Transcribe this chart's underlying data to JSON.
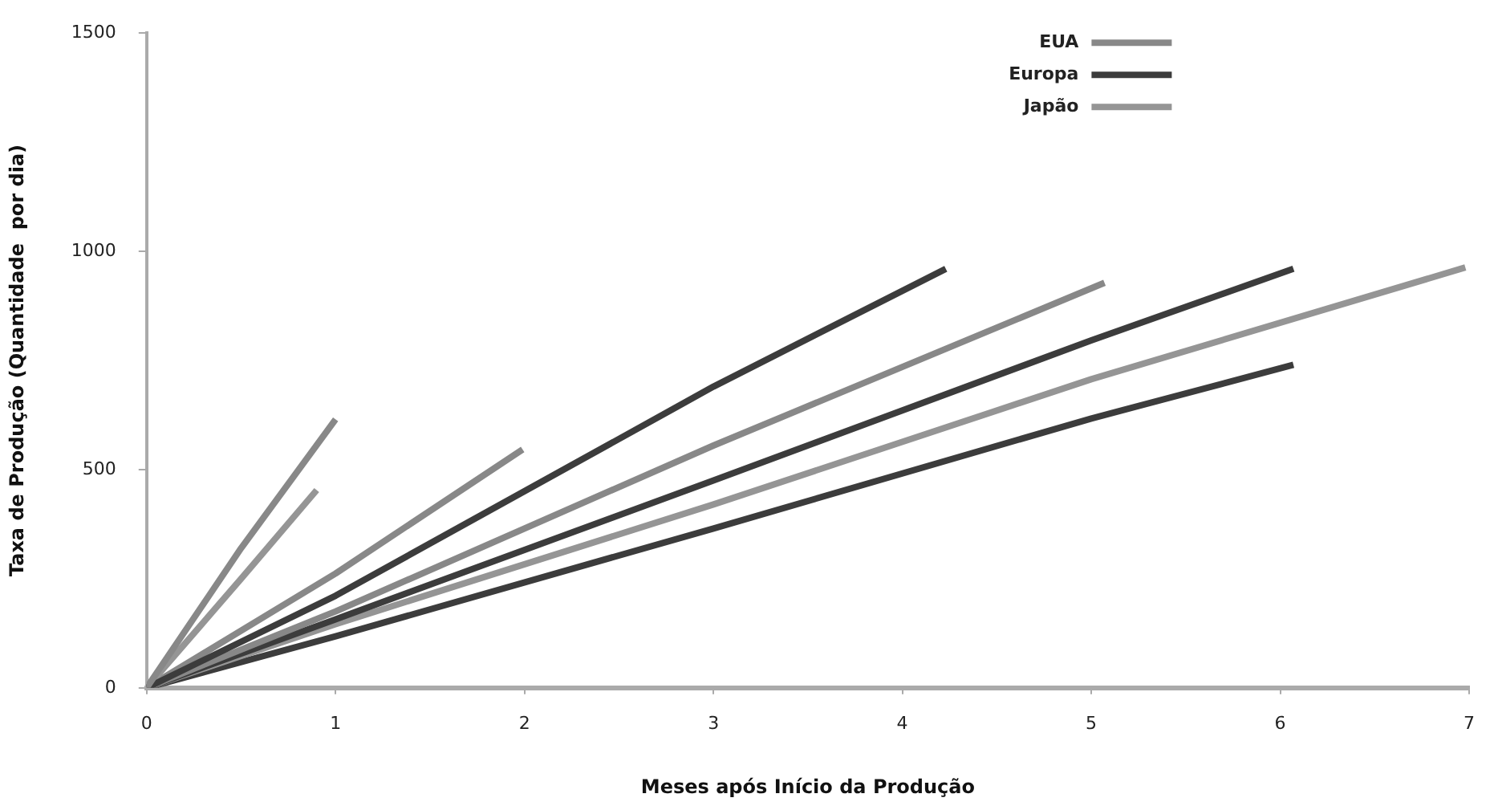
{
  "chart_data": {
    "type": "line",
    "xlabel": "Meses após Início da Produção",
    "ylabel": "Taxa de Produção (Quantidade  por dia)",
    "xlim": [
      0,
      7
    ],
    "xticks": [
      0,
      1,
      2,
      3,
      4,
      5,
      6,
      7
    ],
    "ylim": [
      0,
      1500
    ],
    "yticks": [
      0,
      500,
      1000,
      1500
    ],
    "grid": false,
    "legend": "top right",
    "marker": "none",
    "line_style": "solid",
    "series": [
      {
        "name": "EUA",
        "color": "#888888",
        "x": [
          0,
          0.5,
          1.0
        ],
        "values": [
          0,
          320,
          615
        ]
      },
      {
        "name": "Europa",
        "color": "#3c3c3c",
        "x": [
          0,
          1,
          3,
          4.23
        ],
        "values": [
          0,
          211,
          690,
          960
        ]
      },
      {
        "name": "Japão",
        "color": "#959595",
        "x": [
          0,
          0.5,
          0.9
        ],
        "values": [
          0,
          250,
          453
        ]
      },
      {
        "color": "#888888",
        "x": [
          0,
          1,
          1.99
        ],
        "values": [
          0,
          262,
          546
        ]
      },
      {
        "color": "#888888",
        "x": [
          0,
          1,
          3,
          5.07
        ],
        "values": [
          0,
          175,
          555,
          928
        ]
      },
      {
        "color": "#3c3c3c",
        "x": [
          0,
          1,
          3,
          5,
          6.07
        ],
        "values": [
          0,
          157,
          475,
          796,
          960
        ]
      },
      {
        "color": "#959595",
        "x": [
          0,
          1,
          3,
          5,
          6.98
        ],
        "values": [
          0,
          146,
          420,
          707,
          963
        ]
      },
      {
        "color": "#3c3c3c",
        "x": [
          0,
          1,
          3,
          5,
          6.07
        ],
        "values": [
          0,
          118,
          365,
          617,
          740
        ]
      }
    ]
  }
}
